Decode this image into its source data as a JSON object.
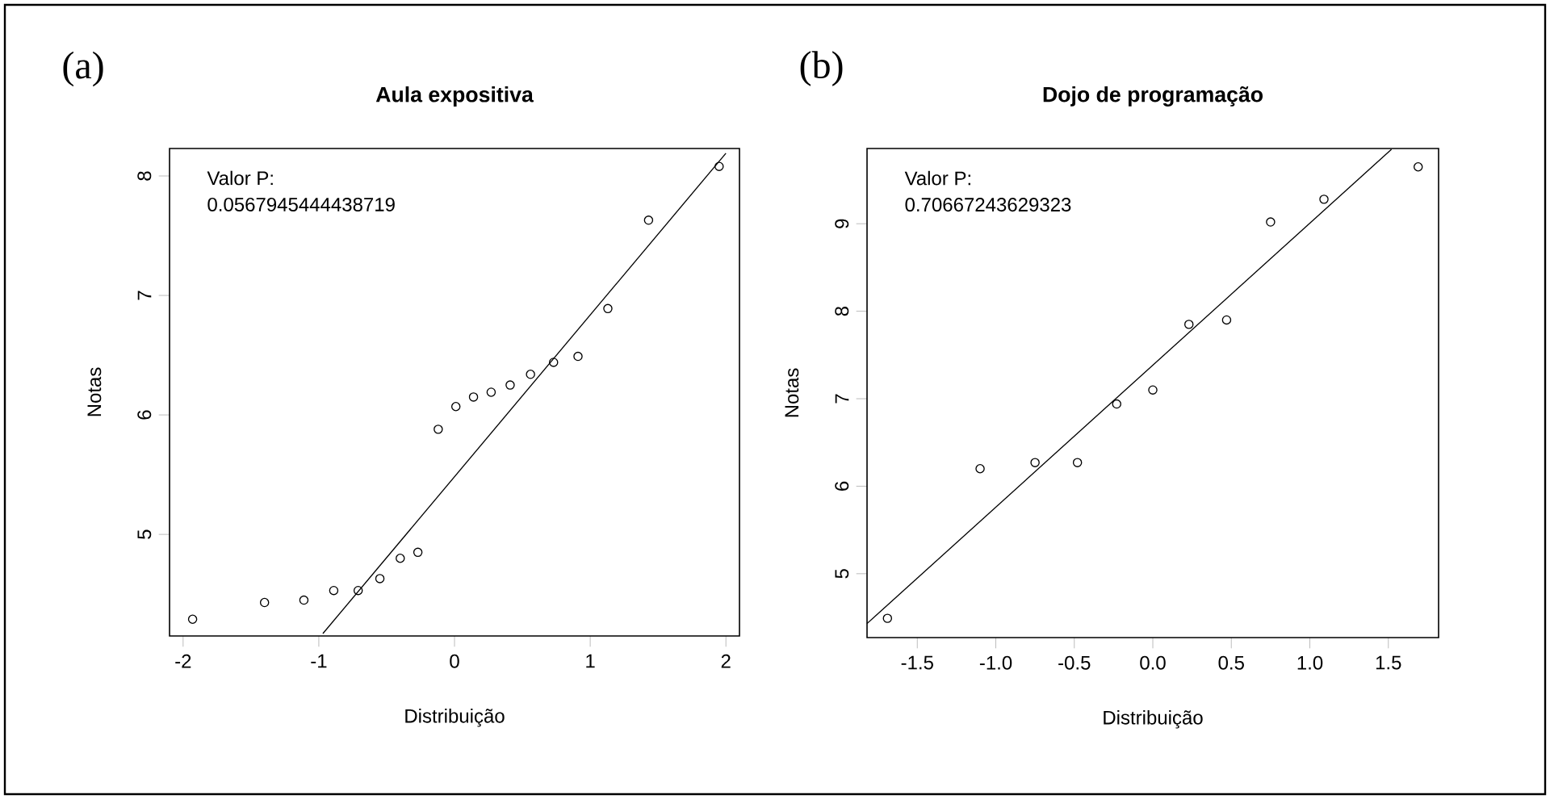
{
  "chart_data": [
    {
      "type": "scatter",
      "title": "Aula expositiva",
      "xlabel": "Distribuição",
      "ylabel": "Notas",
      "annotations": [
        "(a)",
        "Valor P:",
        "0.0567945444438719"
      ],
      "xlim": [
        -2.1,
        2.1
      ],
      "ylim": [
        4.15,
        8.23
      ],
      "xticks": [
        -2,
        -1,
        0,
        1,
        2
      ],
      "yticks": [
        5,
        6,
        7,
        8
      ],
      "grid": false,
      "series": [
        {
          "marker": "circle",
          "color": "#000000",
          "x": [
            -1.93,
            -1.4,
            -1.11,
            -0.89,
            -0.71,
            -0.55,
            -0.4,
            -0.27,
            -0.12,
            0.01,
            0.14,
            0.27,
            0.41,
            0.56,
            0.73,
            0.91,
            1.13,
            1.43,
            1.95
          ],
          "values": [
            4.29,
            4.43,
            4.45,
            4.53,
            4.53,
            4.63,
            4.8,
            4.85,
            5.88,
            6.07,
            6.15,
            6.19,
            6.25,
            6.34,
            6.44,
            6.49,
            6.89,
            7.63,
            8.08
          ]
        },
        {
          "type": "line",
          "marker": "none",
          "color": "#000000",
          "line_style": "solid",
          "x": [
            -0.97,
            2.0
          ],
          "values": [
            4.17,
            8.19
          ]
        }
      ]
    },
    {
      "type": "scatter",
      "title": "Dojo de programação",
      "xlabel": "Distribuição",
      "ylabel": "Notas",
      "annotations": [
        "(b)",
        "Valor P:",
        "0.70667243629323"
      ],
      "xlim": [
        -1.82,
        1.82
      ],
      "ylim": [
        4.27,
        9.86
      ],
      "xticks": [
        -1.5,
        {
          "value": -1,
          "label": "-1.0"
        },
        -0.5,
        {
          "value": 0,
          "label": "0.0"
        },
        0.5,
        {
          "value": 1,
          "label": "1.0"
        },
        1.5
      ],
      "yticks": [
        5,
        6,
        7,
        8,
        9
      ],
      "grid": false,
      "series": [
        {
          "marker": "circle",
          "color": "#000000",
          "x": [
            -1.69,
            -1.1,
            -0.75,
            -0.48,
            -0.23,
            0.0,
            0.23,
            0.47,
            0.75,
            1.09,
            1.69
          ],
          "values": [
            4.49,
            6.2,
            6.27,
            6.27,
            6.94,
            7.1,
            7.85,
            7.9,
            9.02,
            9.28,
            9.65
          ]
        },
        {
          "type": "line",
          "marker": "none",
          "color": "#000000",
          "line_style": "solid",
          "x": [
            -1.82,
            1.52
          ],
          "values": [
            4.43,
            9.85
          ]
        }
      ]
    }
  ]
}
